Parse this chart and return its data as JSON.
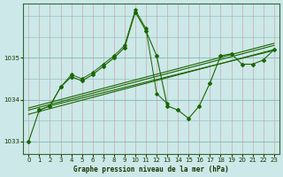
{
  "title": "Graphe pression niveau de la mer (hPa)",
  "bg_color": "#cce8e8",
  "grid_color_major": "#88bbbb",
  "grid_color_minor": "#ddaaaa",
  "line_color": "#1a6600",
  "ylim": [
    1032.7,
    1036.3
  ],
  "yticks": [
    1033,
    1034,
    1035
  ],
  "xlim": [
    -0.5,
    23.5
  ],
  "xticks": [
    0,
    1,
    2,
    3,
    4,
    5,
    6,
    7,
    8,
    9,
    10,
    11,
    12,
    13,
    14,
    15,
    16,
    17,
    18,
    19,
    20,
    21,
    22,
    23
  ],
  "main_line": {
    "x": [
      0,
      1,
      2,
      3,
      4,
      5,
      6,
      7,
      8,
      9,
      10,
      11,
      12,
      13,
      14,
      15,
      16,
      17,
      18,
      19,
      20,
      21,
      22,
      23
    ],
    "y": [
      1033.0,
      1033.75,
      1033.85,
      1034.3,
      1034.55,
      1034.45,
      1034.6,
      1034.8,
      1035.0,
      1035.25,
      1036.1,
      1035.65,
      1035.05,
      1033.85,
      1033.75,
      1033.55,
      1033.85,
      1034.4,
      1035.05,
      1035.1,
      1034.85,
      1034.85,
      1034.95,
      1035.2
    ]
  },
  "trend_lines": [
    {
      "x": [
        0,
        23
      ],
      "y": [
        1033.65,
        1035.2
      ]
    },
    {
      "x": [
        0,
        23
      ],
      "y": [
        1033.75,
        1035.3
      ]
    },
    {
      "x": [
        0,
        23
      ],
      "y": [
        1033.8,
        1035.35
      ]
    },
    {
      "x": [
        2,
        23
      ],
      "y": [
        1033.85,
        1035.18
      ]
    }
  ],
  "extra_lines": [
    {
      "x": [
        1,
        2,
        3,
        4,
        5,
        6,
        7,
        8,
        9,
        10,
        11,
        12,
        13
      ],
      "y": [
        1033.75,
        1033.85,
        1034.3,
        1034.6,
        1034.5,
        1034.65,
        1034.85,
        1035.05,
        1035.3,
        1036.15,
        1035.7,
        1034.15,
        1033.9
      ]
    }
  ]
}
